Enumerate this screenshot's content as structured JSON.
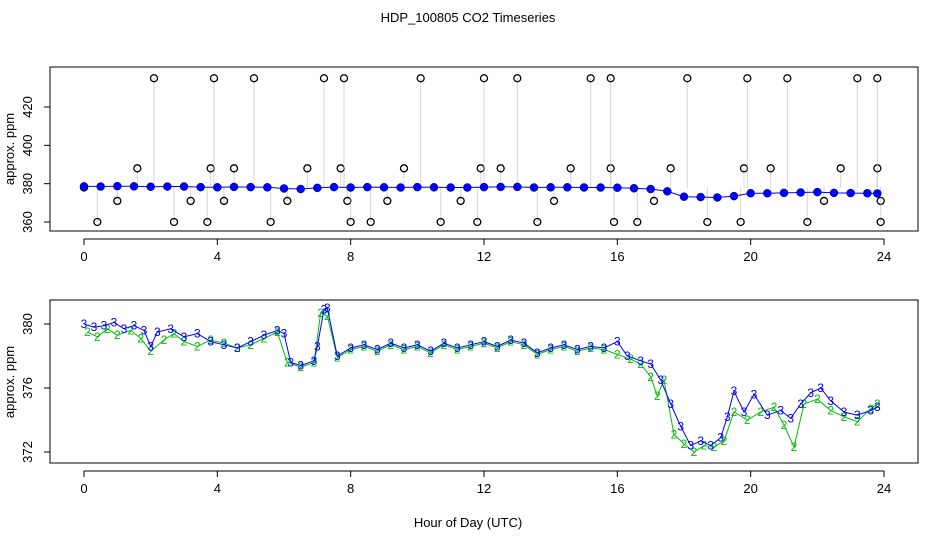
{
  "title": "HDP_100805  CO2 Timeseries",
  "xlabel": "Hour of Day (UTC)",
  "colors": {
    "outline": "#000000",
    "series2": "#00c000",
    "series3": "#0000ff",
    "series3b": "#00dede",
    "connector": "#aaaaaa"
  },
  "chart_data": [
    {
      "type": "scatter",
      "ylabel": "approx. ppm",
      "xlim": [
        0,
        24
      ],
      "ylim": [
        353,
        440
      ],
      "x_ticks": [
        "0",
        "4",
        "8",
        "12",
        "16",
        "20",
        "24"
      ],
      "y_ticks": [
        "360",
        "380",
        "400",
        "420"
      ],
      "x_tick_values": [
        0,
        4,
        8,
        12,
        16,
        20,
        24
      ],
      "y_tick_values": [
        360,
        380,
        400,
        420
      ],
      "series": [
        {
          "name": "",
          "marker": "open-circle",
          "color": "#000000",
          "points": [
            [
              0.0,
              378.0
            ],
            [
              0.4,
              360
            ],
            [
              1.0,
              371
            ],
            [
              1.6,
              388
            ],
            [
              2.1,
              435
            ],
            [
              2.7,
              360
            ],
            [
              3.2,
              371
            ],
            [
              3.7,
              360
            ],
            [
              3.8,
              388
            ],
            [
              3.9,
              435
            ],
            [
              4.2,
              371
            ],
            [
              4.5,
              388
            ],
            [
              5.1,
              435
            ],
            [
              5.6,
              360
            ],
            [
              6.1,
              371
            ],
            [
              6.7,
              388
            ],
            [
              7.2,
              435
            ],
            [
              7.7,
              388
            ],
            [
              7.8,
              435
            ],
            [
              7.9,
              371
            ],
            [
              8.0,
              360
            ],
            [
              8.6,
              360
            ],
            [
              9.1,
              371
            ],
            [
              9.6,
              388
            ],
            [
              10.1,
              435
            ],
            [
              10.7,
              360
            ],
            [
              11.3,
              371
            ],
            [
              11.8,
              360
            ],
            [
              11.9,
              388
            ],
            [
              12.0,
              435
            ],
            [
              12.5,
              388
            ],
            [
              13.0,
              435
            ],
            [
              13.6,
              360
            ],
            [
              14.1,
              371
            ],
            [
              14.6,
              388
            ],
            [
              15.2,
              435
            ],
            [
              15.8,
              388
            ],
            [
              15.8,
              435
            ],
            [
              15.9,
              360
            ],
            [
              16.6,
              360
            ],
            [
              17.1,
              371
            ],
            [
              17.6,
              388
            ],
            [
              18.1,
              435
            ],
            [
              18.7,
              360
            ],
            [
              19.7,
              360
            ],
            [
              19.8,
              388
            ],
            [
              19.9,
              435
            ],
            [
              20.6,
              388
            ],
            [
              21.1,
              435
            ],
            [
              21.7,
              360
            ],
            [
              22.2,
              371
            ],
            [
              22.7,
              388
            ],
            [
              23.2,
              435
            ],
            [
              23.8,
              388
            ],
            [
              23.9,
              371
            ],
            [
              23.8,
              435
            ],
            [
              23.9,
              360
            ]
          ]
        },
        {
          "name": "",
          "marker": "filled-circle",
          "color": "#0000ff",
          "points": [
            [
              0.0,
              378.6
            ],
            [
              0.5,
              378.5
            ],
            [
              1.0,
              378.7
            ],
            [
              1.5,
              378.6
            ],
            [
              2.0,
              378.4
            ],
            [
              2.5,
              378.5
            ],
            [
              3.0,
              378.5
            ],
            [
              3.5,
              378.2
            ],
            [
              4.0,
              378.1
            ],
            [
              4.5,
              378.3
            ],
            [
              5.0,
              378.2
            ],
            [
              5.5,
              378.1
            ],
            [
              6.0,
              377.5
            ],
            [
              6.5,
              377.2
            ],
            [
              7.0,
              377.8
            ],
            [
              7.5,
              378.2
            ],
            [
              8.0,
              378.0
            ],
            [
              8.5,
              378.2
            ],
            [
              9.0,
              378.1
            ],
            [
              9.5,
              378.0
            ],
            [
              10.0,
              378.2
            ],
            [
              10.5,
              378.1
            ],
            [
              11.0,
              378.0
            ],
            [
              11.5,
              378.0
            ],
            [
              12.0,
              378.2
            ],
            [
              12.5,
              378.3
            ],
            [
              13.0,
              378.3
            ],
            [
              13.5,
              378.0
            ],
            [
              14.0,
              378.1
            ],
            [
              14.5,
              378.1
            ],
            [
              15.0,
              378.0
            ],
            [
              15.5,
              378.0
            ],
            [
              16.0,
              377.9
            ],
            [
              16.5,
              377.6
            ],
            [
              17.0,
              377.2
            ],
            [
              17.5,
              376.0
            ],
            [
              18.0,
              373.2
            ],
            [
              18.5,
              373.0
            ],
            [
              19.0,
              372.8
            ],
            [
              19.5,
              373.5
            ],
            [
              20.0,
              375.0
            ],
            [
              20.5,
              375.0
            ],
            [
              21.0,
              375.2
            ],
            [
              21.5,
              375.4
            ],
            [
              22.0,
              375.6
            ],
            [
              22.5,
              375.2
            ],
            [
              23.0,
              375.1
            ],
            [
              23.5,
              375.0
            ],
            [
              23.8,
              374.9
            ]
          ]
        }
      ]
    },
    {
      "type": "scatter",
      "ylabel": "approx. ppm",
      "xlim": [
        0,
        24
      ],
      "ylim": [
        371.0,
        381.5
      ],
      "x_ticks": [
        "0",
        "4",
        "8",
        "12",
        "16",
        "20",
        "24"
      ],
      "y_ticks": [
        "372",
        "376",
        "380"
      ],
      "x_tick_values": [
        0,
        4,
        8,
        12,
        16,
        20,
        24
      ],
      "y_tick_values": [
        372,
        376,
        380
      ],
      "series": [
        {
          "name": "",
          "marker": "2",
          "color": "#00c000",
          "points": [
            [
              0.1,
              379.5
            ],
            [
              0.4,
              379.2
            ],
            [
              0.7,
              379.7
            ],
            [
              1.0,
              379.3
            ],
            [
              1.4,
              379.6
            ],
            [
              1.7,
              379.1
            ],
            [
              2.0,
              378.3
            ],
            [
              2.4,
              379.0
            ],
            [
              2.7,
              379.4
            ],
            [
              3.0,
              378.9
            ],
            [
              3.4,
              378.6
            ],
            [
              3.8,
              379.0
            ],
            [
              4.2,
              378.8
            ],
            [
              4.6,
              378.5
            ],
            [
              5.0,
              378.7
            ],
            [
              5.4,
              379.1
            ],
            [
              5.8,
              379.5
            ],
            [
              6.1,
              377.6
            ],
            [
              6.5,
              377.3
            ],
            [
              6.9,
              377.6
            ],
            [
              7.1,
              380.7
            ],
            [
              7.3,
              380.5
            ],
            [
              7.6,
              377.9
            ],
            [
              8.0,
              378.4
            ],
            [
              8.4,
              378.6
            ],
            [
              8.8,
              378.3
            ],
            [
              9.2,
              378.7
            ],
            [
              9.6,
              378.4
            ],
            [
              10.0,
              378.6
            ],
            [
              10.4,
              378.2
            ],
            [
              10.8,
              378.7
            ],
            [
              11.2,
              378.4
            ],
            [
              11.6,
              378.6
            ],
            [
              12.0,
              378.8
            ],
            [
              12.4,
              378.5
            ],
            [
              12.8,
              378.9
            ],
            [
              13.2,
              378.7
            ],
            [
              13.6,
              378.1
            ],
            [
              14.0,
              378.4
            ],
            [
              14.4,
              378.6
            ],
            [
              14.8,
              378.3
            ],
            [
              15.2,
              378.5
            ],
            [
              15.6,
              378.4
            ],
            [
              16.0,
              378.1
            ],
            [
              16.4,
              377.8
            ],
            [
              16.7,
              377.5
            ],
            [
              17.0,
              376.7
            ],
            [
              17.2,
              375.5
            ],
            [
              17.4,
              376.5
            ],
            [
              17.7,
              373.1
            ],
            [
              18.0,
              372.5
            ],
            [
              18.3,
              372.0
            ],
            [
              18.6,
              372.4
            ],
            [
              18.9,
              372.3
            ],
            [
              19.2,
              372.7
            ],
            [
              19.5,
              374.5
            ],
            [
              19.9,
              374.0
            ],
            [
              20.3,
              374.5
            ],
            [
              20.7,
              374.8
            ],
            [
              21.0,
              373.7
            ],
            [
              21.3,
              372.3
            ],
            [
              21.6,
              375.0
            ],
            [
              22.0,
              375.3
            ],
            [
              22.4,
              374.6
            ],
            [
              22.8,
              374.2
            ],
            [
              23.2,
              373.9
            ],
            [
              23.6,
              374.7
            ],
            [
              23.8,
              375.0
            ]
          ]
        },
        {
          "name": "",
          "marker": "3",
          "color": "#0000ff",
          "points": [
            [
              0.0,
              380.0
            ],
            [
              0.3,
              379.8
            ],
            [
              0.6,
              379.9
            ],
            [
              0.9,
              380.1
            ],
            [
              1.2,
              379.7
            ],
            [
              1.5,
              379.9
            ],
            [
              1.8,
              379.6
            ],
            [
              2.0,
              378.6
            ],
            [
              2.2,
              379.5
            ],
            [
              2.6,
              379.7
            ],
            [
              3.0,
              379.2
            ],
            [
              3.4,
              379.4
            ],
            [
              3.8,
              378.9
            ],
            [
              4.2,
              378.7
            ],
            [
              4.6,
              378.5
            ],
            [
              5.0,
              378.9
            ],
            [
              5.4,
              379.3
            ],
            [
              5.8,
              379.6
            ],
            [
              6.0,
              379.4
            ],
            [
              6.2,
              377.6
            ],
            [
              6.5,
              377.4
            ],
            [
              6.9,
              377.7
            ],
            [
              7.0,
              378.6
            ],
            [
              7.2,
              380.9
            ],
            [
              7.3,
              381.0
            ],
            [
              7.6,
              378.0
            ],
            [
              8.0,
              378.5
            ],
            [
              8.4,
              378.7
            ],
            [
              8.8,
              378.4
            ],
            [
              9.2,
              378.8
            ],
            [
              9.6,
              378.5
            ],
            [
              10.0,
              378.7
            ],
            [
              10.4,
              378.3
            ],
            [
              10.8,
              378.8
            ],
            [
              11.2,
              378.5
            ],
            [
              11.6,
              378.7
            ],
            [
              12.0,
              378.9
            ],
            [
              12.4,
              378.6
            ],
            [
              12.8,
              379.0
            ],
            [
              13.2,
              378.8
            ],
            [
              13.6,
              378.2
            ],
            [
              14.0,
              378.5
            ],
            [
              14.4,
              378.7
            ],
            [
              14.8,
              378.4
            ],
            [
              15.2,
              378.6
            ],
            [
              15.6,
              378.5
            ],
            [
              16.0,
              378.9
            ],
            [
              16.3,
              378.0
            ],
            [
              16.7,
              377.7
            ],
            [
              17.0,
              377.5
            ],
            [
              17.3,
              376.5
            ],
            [
              17.6,
              375.0
            ],
            [
              17.9,
              373.6
            ],
            [
              18.2,
              372.4
            ],
            [
              18.5,
              372.7
            ],
            [
              18.8,
              372.4
            ],
            [
              19.1,
              372.9
            ],
            [
              19.3,
              374.2
            ],
            [
              19.5,
              375.8
            ],
            [
              19.8,
              374.5
            ],
            [
              20.1,
              375.6
            ],
            [
              20.5,
              374.3
            ],
            [
              20.9,
              374.6
            ],
            [
              21.2,
              374.1
            ],
            [
              21.5,
              375.0
            ],
            [
              21.8,
              375.7
            ],
            [
              22.1,
              376.0
            ],
            [
              22.4,
              375.2
            ],
            [
              22.8,
              374.5
            ],
            [
              23.2,
              374.3
            ],
            [
              23.6,
              374.6
            ],
            [
              23.8,
              374.8
            ]
          ]
        }
      ]
    }
  ]
}
